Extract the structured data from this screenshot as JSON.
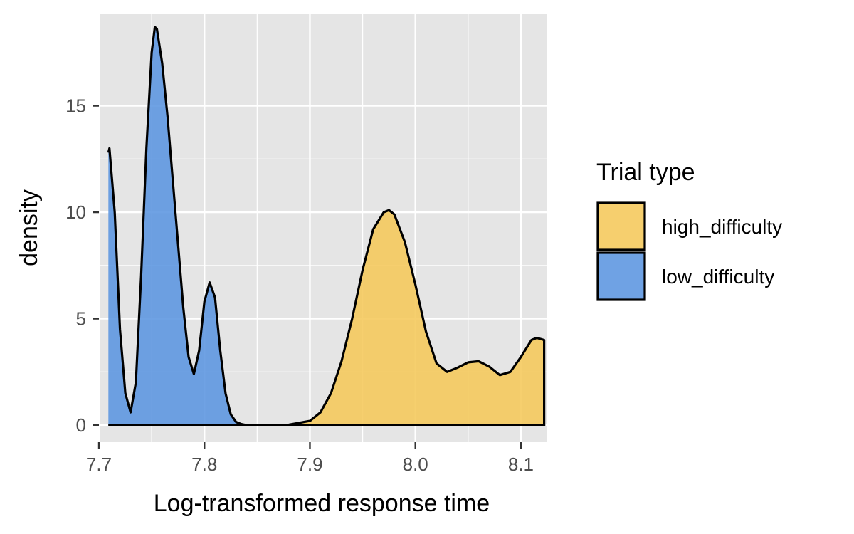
{
  "chart_data": {
    "type": "area",
    "xlabel": "Log-transformed response time",
    "ylabel": "density",
    "xlim": [
      7.7,
      8.125
    ],
    "ylim": [
      -0.8,
      19.3
    ],
    "x_ticks": [
      7.7,
      7.8,
      7.9,
      8.0,
      8.1
    ],
    "x_tick_labels": [
      "7.7",
      "7.8",
      "7.9",
      "8.0",
      "8.1"
    ],
    "y_ticks": [
      0,
      5,
      10,
      15
    ],
    "y_tick_labels": [
      "0",
      "5",
      "10",
      "15"
    ],
    "grid": true,
    "panel_background": "#E5E5E5",
    "legend": {
      "title": "Trial type",
      "placement": "right"
    },
    "series": [
      {
        "name": "high_difficulty",
        "color": "#F5C85A",
        "x": [
          7.709,
          7.85,
          7.88,
          7.9,
          7.91,
          7.92,
          7.93,
          7.94,
          7.95,
          7.96,
          7.97,
          7.975,
          7.98,
          7.99,
          8.0,
          8.01,
          8.02,
          8.03,
          8.04,
          8.05,
          8.06,
          8.07,
          8.08,
          8.09,
          8.1,
          8.11,
          8.115,
          8.122
        ],
        "y": [
          0,
          0,
          0.02,
          0.2,
          0.6,
          1.5,
          3.0,
          5.0,
          7.3,
          9.2,
          10.0,
          10.1,
          9.9,
          8.6,
          6.6,
          4.4,
          2.9,
          2.5,
          2.7,
          2.95,
          3.0,
          2.75,
          2.35,
          2.5,
          3.2,
          4.0,
          4.1,
          4.0
        ]
      },
      {
        "name": "low_difficulty",
        "color": "#5B95E0",
        "x": [
          7.709,
          7.71,
          7.715,
          7.72,
          7.725,
          7.73,
          7.735,
          7.74,
          7.745,
          7.75,
          7.753,
          7.755,
          7.76,
          7.765,
          7.77,
          7.775,
          7.78,
          7.785,
          7.79,
          7.795,
          7.8,
          7.805,
          7.81,
          7.815,
          7.82,
          7.825,
          7.83,
          7.835,
          7.84,
          8.122
        ],
        "y": [
          12.8,
          13.0,
          10.0,
          4.5,
          1.5,
          0.6,
          2.0,
          7.0,
          13.0,
          17.5,
          18.7,
          18.6,
          17.0,
          14.5,
          11.5,
          8.5,
          5.5,
          3.2,
          2.4,
          3.5,
          5.8,
          6.7,
          6.0,
          3.5,
          1.5,
          0.5,
          0.15,
          0.05,
          0.0,
          0.0
        ]
      }
    ]
  }
}
